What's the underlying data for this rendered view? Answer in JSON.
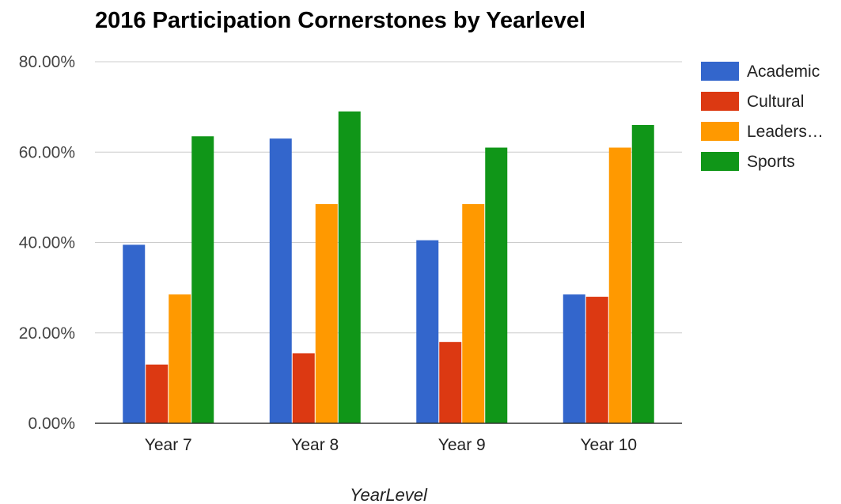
{
  "chart_data": {
    "type": "bar",
    "title": "2016 Participation Cornerstones by Yearlevel",
    "xlabel": "YearLevel",
    "ylabel": "",
    "categories": [
      "Year 7",
      "Year 8",
      "Year 9",
      "Year 10"
    ],
    "y_ticks": [
      "0.00%",
      "20.00%",
      "40.00%",
      "60.00%",
      "80.00%"
    ],
    "ylim": [
      0,
      80
    ],
    "grid": true,
    "legend_position": "right",
    "series": [
      {
        "name": "Academic",
        "legend_label": "Academic",
        "color": "#3366cc",
        "values": [
          39.5,
          63.0,
          40.5,
          28.5
        ]
      },
      {
        "name": "Cultural",
        "legend_label": "Cultural",
        "color": "#dc3912",
        "values": [
          13.0,
          15.5,
          18.0,
          28.0
        ]
      },
      {
        "name": "Leadership",
        "legend_label": "Leaders…",
        "color": "#ff9900",
        "values": [
          28.5,
          48.5,
          48.5,
          61.0
        ]
      },
      {
        "name": "Sports",
        "legend_label": "Sports",
        "color": "#109618",
        "values": [
          63.5,
          69.0,
          61.0,
          66.0
        ]
      }
    ]
  }
}
